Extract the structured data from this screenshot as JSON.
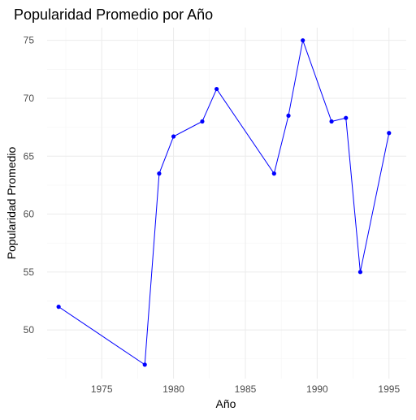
{
  "chart_data": {
    "type": "line",
    "title": "Popularidad Promedio por Año",
    "xlabel": "Año",
    "ylabel": "Popularidad Promedio",
    "xlim": [
      1971.2,
      1996.2
    ],
    "ylim": [
      45.8,
      76.1
    ],
    "x_ticks": [
      1975,
      1980,
      1985,
      1990,
      1995
    ],
    "y_ticks": [
      50,
      55,
      60,
      65,
      70,
      75
    ],
    "grid": true,
    "legend": "none",
    "series": [
      {
        "color": "#0000ff",
        "points": [
          {
            "x": 1972,
            "y": 52.0
          },
          {
            "x": 1978,
            "y": 47.0
          },
          {
            "x": 1979,
            "y": 63.5
          },
          {
            "x": 1980,
            "y": 66.7
          },
          {
            "x": 1982,
            "y": 68.0
          },
          {
            "x": 1983,
            "y": 70.8
          },
          {
            "x": 1987,
            "y": 63.5
          },
          {
            "x": 1988,
            "y": 68.5
          },
          {
            "x": 1989,
            "y": 75.0
          },
          {
            "x": 1991,
            "y": 68.0
          },
          {
            "x": 1992,
            "y": 68.3
          },
          {
            "x": 1993,
            "y": 55.0
          },
          {
            "x": 1995,
            "y": 67.0
          }
        ]
      }
    ]
  }
}
